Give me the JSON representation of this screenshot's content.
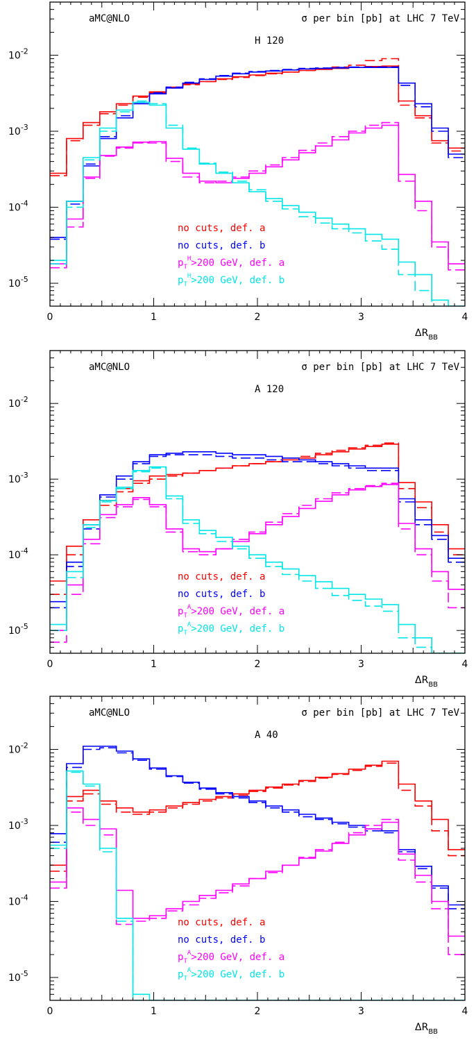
{
  "chart_data": [
    {
      "type": "line",
      "step": true,
      "generator": "aMC@NLO",
      "title": "σ per bin [pb]  at LHC 7 TeV",
      "process": "H 120",
      "xlabel": "ΔR_BB",
      "xlim": [
        0,
        4
      ],
      "ylim": [
        5e-06,
        0.05
      ],
      "yscale": "log",
      "x_ticks": [
        "0",
        "1",
        "2",
        "3",
        "4"
      ],
      "y_ticks": [
        "10^-5",
        "10^-4",
        "10^-3",
        "10^-2"
      ],
      "bin_edges": [
        0,
        0.16,
        0.32,
        0.48,
        0.64,
        0.8,
        0.96,
        1.12,
        1.28,
        1.44,
        1.6,
        1.76,
        1.92,
        2.08,
        2.24,
        2.4,
        2.56,
        2.72,
        2.88,
        3.04,
        3.2,
        3.36,
        3.52,
        3.68,
        3.84,
        4.0
      ],
      "series": [
        {
          "name": "no cuts, def. a",
          "color": "#ff0000",
          "style": "solid",
          "values": [
            0.00028,
            0.0008,
            0.0013,
            0.0018,
            0.0023,
            0.0029,
            0.0033,
            0.0038,
            0.0042,
            0.0045,
            0.0049,
            0.0052,
            0.0055,
            0.0058,
            0.006,
            0.0063,
            0.0065,
            0.0067,
            0.0069,
            0.0071,
            0.0072,
            0.0025,
            0.0016,
            0.00075,
            0.0006
          ]
        },
        {
          "name": "no cuts, def. a",
          "color": "#ff0000",
          "style": "dashed",
          "values": [
            0.00026,
            0.00075,
            0.0012,
            0.0017,
            0.0022,
            0.0028,
            0.0032,
            0.0037,
            0.0041,
            0.0045,
            0.0048,
            0.0051,
            0.0054,
            0.0057,
            0.006,
            0.0063,
            0.0066,
            0.007,
            0.0074,
            0.0085,
            0.009,
            0.0022,
            0.0015,
            0.0007,
            0.00055
          ]
        },
        {
          "name": "no cuts, def. b",
          "color": "#0000ff",
          "style": "solid",
          "values": [
            4e-05,
            0.00012,
            0.00035,
            0.0008,
            0.0015,
            0.0023,
            0.0031,
            0.0037,
            0.0043,
            0.0048,
            0.0053,
            0.0057,
            0.006,
            0.0062,
            0.0064,
            0.0066,
            0.0067,
            0.0068,
            0.0069,
            0.0069,
            0.0069,
            0.0043,
            0.0023,
            0.0011,
            0.0005
          ]
        },
        {
          "name": "no cuts, def. b",
          "color": "#0000ff",
          "style": "dashed",
          "values": [
            3.8e-05,
            0.00011,
            0.00037,
            0.00085,
            0.0016,
            0.0024,
            0.0032,
            0.0038,
            0.0044,
            0.0049,
            0.0054,
            0.0058,
            0.0061,
            0.0063,
            0.0065,
            0.0067,
            0.0068,
            0.0069,
            0.007,
            0.007,
            0.007,
            0.004,
            0.0021,
            0.001,
            0.00045
          ]
        },
        {
          "name": "pT^H>200 GeV, def. a",
          "color": "#ff00ff",
          "style": "solid",
          "values": [
            1.8e-05,
            7e-05,
            0.00025,
            0.00048,
            0.00062,
            0.00072,
            0.00073,
            0.00044,
            0.00028,
            0.00022,
            0.00021,
            0.00024,
            0.00028,
            0.00034,
            0.00042,
            0.00052,
            0.00064,
            0.00077,
            0.00095,
            0.0011,
            0.0012,
            0.00027,
            0.00012,
            3.5e-05,
            1.8e-05
          ]
        },
        {
          "name": "pT^H>200 GeV, def. a",
          "color": "#ff00ff",
          "style": "dashed",
          "values": [
            1.6e-05,
            5.5e-05,
            0.00024,
            0.00047,
            0.0006,
            0.0007,
            0.0007,
            0.0004,
            0.00025,
            0.00021,
            0.00022,
            0.00025,
            0.0003,
            0.00036,
            0.00045,
            0.00056,
            0.0007,
            0.00085,
            0.001,
            0.0012,
            0.0013,
            0.00022,
            9e-05,
            3e-05,
            1.5e-05
          ]
        },
        {
          "name": "pT^H>200 GeV, def. b",
          "color": "#00e6e6",
          "style": "solid",
          "values": [
            2e-05,
            0.00012,
            0.00045,
            0.0011,
            0.0019,
            0.0024,
            0.0022,
            0.0011,
            0.00058,
            0.00037,
            0.00028,
            0.00021,
            0.00016,
            0.00013,
            0.000105,
            8.6e-05,
            7.2e-05,
            6e-05,
            5.2e-05,
            4.4e-05,
            3.8e-05,
            1.9e-05,
            1.3e-05,
            6e-06,
            4e-06
          ]
        },
        {
          "name": "pT^H>200 GeV, def. b",
          "color": "#00e6e6",
          "style": "dashed",
          "values": [
            1.8e-05,
            0.0001,
            0.00042,
            0.001,
            0.0018,
            0.0025,
            0.0023,
            0.0012,
            0.0006,
            0.00038,
            0.00029,
            0.00022,
            0.00017,
            0.00012,
            9.5e-05,
            7.5e-05,
            6.2e-05,
            5.2e-05,
            4.6e-05,
            3.6e-05,
            2.8e-05,
            1.3e-05,
            8e-06,
            5e-06,
            4e-06
          ]
        }
      ]
    },
    {
      "type": "line",
      "step": true,
      "generator": "aMC@NLO",
      "title": "σ per bin [pb]  at LHC 7 TeV",
      "process": "A 120",
      "xlabel": "ΔR_BB",
      "xlim": [
        0,
        4
      ],
      "ylim": [
        5e-06,
        0.05
      ],
      "yscale": "log",
      "x_ticks": [
        "0",
        "1",
        "2",
        "3",
        "4"
      ],
      "y_ticks": [
        "10^-5",
        "10^-4",
        "10^-3",
        "10^-2"
      ],
      "bin_edges": [
        0,
        0.16,
        0.32,
        0.48,
        0.64,
        0.8,
        0.96,
        1.12,
        1.28,
        1.44,
        1.6,
        1.76,
        1.92,
        2.08,
        2.24,
        2.4,
        2.56,
        2.72,
        2.88,
        3.04,
        3.2,
        3.36,
        3.52,
        3.68,
        3.84,
        4.0
      ],
      "series": [
        {
          "name": "no cuts, def. a",
          "color": "#ff0000",
          "style": "solid",
          "values": [
            4.5e-05,
            0.00013,
            0.00029,
            0.00052,
            0.00075,
            0.00095,
            0.0011,
            0.00115,
            0.0012,
            0.0013,
            0.0014,
            0.0015,
            0.0016,
            0.0017,
            0.0018,
            0.0019,
            0.0021,
            0.0023,
            0.0025,
            0.0027,
            0.0029,
            0.0009,
            0.0005,
            0.00025,
            0.00012
          ]
        },
        {
          "name": "no cuts, def. a",
          "color": "#ff0000",
          "style": "dashed",
          "values": [
            3e-05,
            0.0001,
            0.00025,
            0.00045,
            0.00068,
            0.00088,
            0.001,
            0.0011,
            0.0012,
            0.0013,
            0.0014,
            0.0015,
            0.0016,
            0.0017,
            0.0019,
            0.002,
            0.0022,
            0.0024,
            0.0026,
            0.0028,
            0.003,
            0.00075,
            0.00042,
            0.0002,
            0.0001
          ]
        },
        {
          "name": "no cuts, def. b",
          "color": "#0000ff",
          "style": "solid",
          "values": [
            2.4e-05,
            8e-05,
            0.00025,
            0.00062,
            0.0011,
            0.0017,
            0.0021,
            0.0022,
            0.0023,
            0.0023,
            0.0022,
            0.0021,
            0.0021,
            0.002,
            0.0019,
            0.0018,
            0.0017,
            0.0016,
            0.0015,
            0.0014,
            0.0014,
            0.00055,
            0.00029,
            0.00018,
            9e-05
          ]
        },
        {
          "name": "no cuts, def. b",
          "color": "#0000ff",
          "style": "dashed",
          "values": [
            2e-05,
            7e-05,
            0.00022,
            0.00058,
            0.001,
            0.0016,
            0.002,
            0.0021,
            0.0021,
            0.0021,
            0.002,
            0.0019,
            0.0019,
            0.0018,
            0.0017,
            0.0017,
            0.0016,
            0.0015,
            0.0014,
            0.0013,
            0.0013,
            0.0005,
            0.00025,
            0.00016,
            8e-05
          ]
        },
        {
          "name": "pT^A>200 GeV, def. a",
          "color": "#ff00ff",
          "style": "solid",
          "values": [
            1e-05,
            4e-05,
            0.00016,
            0.00034,
            0.00046,
            0.00057,
            0.00046,
            0.00022,
            0.00012,
            0.00011,
            0.00012,
            0.00015,
            0.00019,
            0.00025,
            0.00032,
            0.00041,
            0.00051,
            0.00062,
            0.00072,
            0.0008,
            0.00085,
            0.00026,
            0.00012,
            6e-05,
            3.5e-05
          ]
        },
        {
          "name": "pT^A>200 GeV, def. a",
          "color": "#ff00ff",
          "style": "dashed",
          "values": [
            7e-06,
            3e-05,
            0.00014,
            0.00031,
            0.00043,
            0.00054,
            0.00043,
            0.0002,
            0.00011,
            0.0001,
            0.00012,
            0.00016,
            0.0002,
            0.00027,
            0.00035,
            0.00045,
            0.00055,
            0.00066,
            0.00075,
            0.00082,
            0.00088,
            0.00022,
            0.0001,
            4.5e-05,
            2e-05
          ]
        },
        {
          "name": "pT^A>200 GeV, def. b",
          "color": "#00e6e6",
          "style": "solid",
          "values": [
            1.2e-05,
            6e-05,
            0.00025,
            0.00052,
            0.00078,
            0.0013,
            0.00145,
            0.0006,
            0.00029,
            0.00021,
            0.00017,
            0.00013,
            0.0001,
            8e-05,
            6.5e-05,
            5.3e-05,
            4.4e-05,
            3.6e-05,
            3e-05,
            2.6e-05,
            2.2e-05,
            1.2e-05,
            8e-06,
            5e-06,
            5e-06
          ]
        },
        {
          "name": "pT^A>200 GeV, def. b",
          "color": "#00e6e6",
          "style": "dashed",
          "values": [
            1e-05,
            5e-05,
            0.00023,
            0.0005,
            0.00075,
            0.00125,
            0.0014,
            0.00055,
            0.00026,
            0.00019,
            0.00015,
            0.00012,
            9e-05,
            7e-05,
            5.5e-05,
            4.5e-05,
            3.6e-05,
            2.9e-05,
            2.5e-05,
            2.1e-05,
            1.8e-05,
            8e-06,
            6e-06,
            5e-06,
            5e-06
          ]
        }
      ]
    },
    {
      "type": "line",
      "step": true,
      "generator": "aMC@NLO",
      "title": "σ per bin [pb]  at LHC 7 TeV",
      "process": "A 40",
      "xlabel": "ΔR_BB",
      "xlim": [
        0,
        4
      ],
      "ylim": [
        5e-06,
        0.05
      ],
      "yscale": "log",
      "x_ticks": [
        "0",
        "1",
        "2",
        "3",
        "4"
      ],
      "y_ticks": [
        "10^-5",
        "10^-4",
        "10^-3",
        "10^-2"
      ],
      "bin_edges": [
        0,
        0.16,
        0.32,
        0.48,
        0.64,
        0.8,
        0.96,
        1.12,
        1.28,
        1.44,
        1.6,
        1.76,
        1.92,
        2.08,
        2.24,
        2.4,
        2.56,
        2.72,
        2.88,
        3.04,
        3.2,
        3.36,
        3.52,
        3.68,
        3.84,
        4.0
      ],
      "series": [
        {
          "name": "no cuts, def. a",
          "color": "#ff0000",
          "style": "solid",
          "values": [
            0.0003,
            0.0024,
            0.0029,
            0.0021,
            0.0017,
            0.0015,
            0.0016,
            0.0018,
            0.002,
            0.0022,
            0.0024,
            0.0026,
            0.0029,
            0.0032,
            0.0035,
            0.0039,
            0.0043,
            0.0048,
            0.0055,
            0.0062,
            0.007,
            0.0035,
            0.0021,
            0.0012,
            0.00048
          ]
        },
        {
          "name": "no cuts, def. a",
          "color": "#ff0000",
          "style": "dashed",
          "values": [
            0.00025,
            0.0021,
            0.0026,
            0.0019,
            0.0015,
            0.0014,
            0.0015,
            0.0017,
            0.0019,
            0.0021,
            0.0023,
            0.0025,
            0.0028,
            0.0031,
            0.0034,
            0.0038,
            0.0042,
            0.0047,
            0.0053,
            0.006,
            0.0066,
            0.0029,
            0.0018,
            0.00085,
            0.0004
          ]
        },
        {
          "name": "no cuts, def. b",
          "color": "#0000ff",
          "style": "solid",
          "values": [
            0.00078,
            0.0065,
            0.011,
            0.011,
            0.0095,
            0.0075,
            0.0057,
            0.0045,
            0.0037,
            0.0031,
            0.0027,
            0.0024,
            0.0021,
            0.0018,
            0.0016,
            0.0014,
            0.00125,
            0.0011,
            0.001,
            0.0009,
            0.00085,
            0.00048,
            0.00029,
            0.00016,
            9e-05
          ]
        },
        {
          "name": "no cuts, def. b",
          "color": "#0000ff",
          "style": "dashed",
          "values": [
            0.0006,
            0.0058,
            0.01,
            0.0105,
            0.009,
            0.0072,
            0.0055,
            0.0044,
            0.0036,
            0.003,
            0.0026,
            0.0023,
            0.002,
            0.0017,
            0.0015,
            0.0013,
            0.0012,
            0.00105,
            0.00095,
            0.00085,
            0.0008,
            0.00045,
            0.00027,
            0.00015,
            8e-05
          ]
        },
        {
          "name": "pT^A>200 GeV, def. a",
          "color": "#ff00ff",
          "style": "solid",
          "values": [
            0.00018,
            0.0017,
            0.0012,
            0.0009,
            0.00014,
            6e-05,
            6.5e-05,
            8e-05,
            0.0001,
            0.00012,
            0.00014,
            0.00017,
            0.0002,
            0.00025,
            0.0003,
            0.00037,
            0.00046,
            0.00058,
            0.00075,
            0.0009,
            0.0011,
            0.00042,
            0.00022,
            0.0001,
            3.5e-05
          ]
        },
        {
          "name": "pT^A>200 GeV, def. a",
          "color": "#ff00ff",
          "style": "dashed",
          "values": [
            0.00015,
            0.0015,
            0.001,
            0.00075,
            5e-05,
            5.5e-05,
            6e-05,
            7.5e-05,
            9e-05,
            0.00011,
            0.00013,
            0.00016,
            0.0002,
            0.00024,
            0.0003,
            0.00038,
            0.00048,
            0.0006,
            0.0008,
            0.001,
            0.0012,
            0.00035,
            0.00018,
            8e-05,
            2e-05
          ]
        },
        {
          "name": "pT^A>200 GeV, def. b",
          "color": "#00e6e6",
          "style": "solid",
          "values": [
            0.00055,
            0.0052,
            0.0035,
            0.0005,
            6e-05,
            6e-06,
            5e-06,
            5e-06,
            5e-06,
            5e-06,
            5e-06,
            5e-06,
            5e-06,
            5e-06,
            5e-06,
            5e-06,
            5e-06,
            5e-06,
            5e-06,
            5e-06,
            5e-06,
            5e-06,
            5e-06,
            5e-06,
            5e-06
          ]
        },
        {
          "name": "pT^A>200 GeV, def. b",
          "color": "#00e6e6",
          "style": "dashed",
          "values": [
            0.0005,
            0.005,
            0.0033,
            0.00045,
            5.5e-05,
            5e-06,
            5e-06,
            5e-06,
            5e-06,
            5e-06,
            5e-06,
            5e-06,
            5e-06,
            5e-06,
            5e-06,
            5e-06,
            5e-06,
            5e-06,
            5e-06,
            5e-06,
            5e-06,
            5e-06,
            5e-06,
            5e-06,
            5e-06
          ]
        }
      ]
    }
  ],
  "legends": [
    [
      {
        "text": "no cuts, def. a",
        "color": "#ff0000"
      },
      {
        "text": "no cuts, def. b",
        "color": "#0000ff"
      },
      {
        "base": "p",
        "sub": "T",
        "sup": "H",
        "rest": ">200 GeV, def. a",
        "color": "#ff00ff"
      },
      {
        "base": "p",
        "sub": "T",
        "sup": "H",
        "rest": ">200 GeV, def. b",
        "color": "#00e6e6"
      }
    ],
    [
      {
        "text": "no cuts, def. a",
        "color": "#ff0000"
      },
      {
        "text": "no cuts, def. b",
        "color": "#0000ff"
      },
      {
        "base": "p",
        "sub": "T",
        "sup": "A",
        "rest": ">200 GeV, def. a",
        "color": "#ff00ff"
      },
      {
        "base": "p",
        "sub": "T",
        "sup": "A",
        "rest": ">200 GeV, def. b",
        "color": "#00e6e6"
      }
    ],
    [
      {
        "text": "no cuts, def. a",
        "color": "#ff0000"
      },
      {
        "text": "no cuts, def. b",
        "color": "#0000ff"
      },
      {
        "base": "p",
        "sub": "T",
        "sup": "A",
        "rest": ">200 GeV, def. a",
        "color": "#ff00ff"
      },
      {
        "base": "p",
        "sub": "T",
        "sup": "A",
        "rest": ">200 GeV, def. b",
        "color": "#00e6e6"
      }
    ]
  ]
}
